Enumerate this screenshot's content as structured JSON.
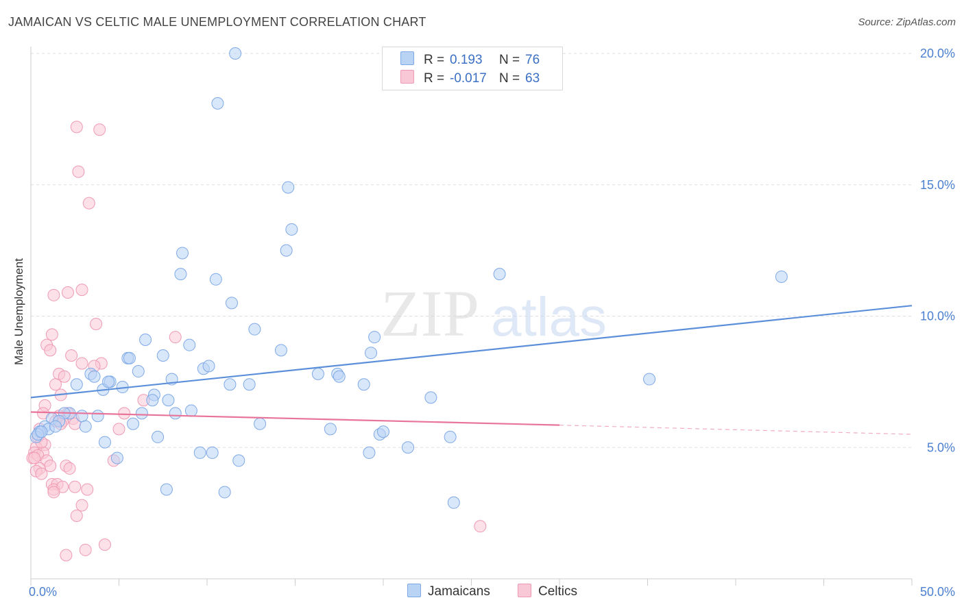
{
  "title": "JAMAICAN VS CELTIC MALE UNEMPLOYMENT CORRELATION CHART",
  "source": "Source: ZipAtlas.com",
  "watermark": {
    "zip": "ZIP",
    "atlas": "atlas"
  },
  "legend": {
    "rows": [
      {
        "r_label": "R =",
        "r_value": "0.193",
        "n_label": "N =",
        "n_value": "76",
        "fill": "#b9d3f5",
        "stroke": "#7ea9e6"
      },
      {
        "r_label": "R =",
        "r_value": "-0.017",
        "n_label": "N =",
        "n_value": "63",
        "fill": "#f9c8d6",
        "stroke": "#ef9ab4"
      }
    ]
  },
  "bottom_legend": [
    {
      "label": "Jamaicans",
      "fill": "#b9d3f5",
      "stroke": "#7ea9e6"
    },
    {
      "label": "Celtics",
      "fill": "#f9c8d6",
      "stroke": "#ef9ab4"
    }
  ],
  "chart_data": {
    "type": "scatter",
    "title": "JAMAICAN VS CELTIC MALE UNEMPLOYMENT CORRELATION CHART",
    "xlabel": "",
    "ylabel": "Male Unemployment",
    "xlim": [
      0,
      50
    ],
    "ylim": [
      0,
      20
    ],
    "x_tick_labels": [
      {
        "value": 0,
        "label": "0.0%"
      },
      {
        "value": 50,
        "label": "50.0%"
      }
    ],
    "y_tick_labels": [
      {
        "value": 5,
        "label": "5.0%"
      },
      {
        "value": 10,
        "label": "10.0%"
      },
      {
        "value": 15,
        "label": "15.0%"
      },
      {
        "value": 20,
        "label": "20.0%"
      }
    ],
    "grid": "horizontal dashed",
    "legend_placement": "top-center",
    "series": [
      {
        "name": "Jamaicans",
        "color": "#5b8fd9",
        "fill": "#b9d3f5",
        "points": [
          [
            11.6,
            20.0
          ],
          [
            10.6,
            18.1
          ],
          [
            14.6,
            14.9
          ],
          [
            14.8,
            13.3
          ],
          [
            14.5,
            12.5
          ],
          [
            8.6,
            12.4
          ],
          [
            8.5,
            11.6
          ],
          [
            10.5,
            11.4
          ],
          [
            26.6,
            11.6
          ],
          [
            42.6,
            11.5
          ],
          [
            11.4,
            10.5
          ],
          [
            12.7,
            9.5
          ],
          [
            14.2,
            8.7
          ],
          [
            19.5,
            9.2
          ],
          [
            19.3,
            8.6
          ],
          [
            6.5,
            9.1
          ],
          [
            9.0,
            8.9
          ],
          [
            7.5,
            8.5
          ],
          [
            5.5,
            8.4
          ],
          [
            5.6,
            8.4
          ],
          [
            9.8,
            8.0
          ],
          [
            10.1,
            8.1
          ],
          [
            6.1,
            7.9
          ],
          [
            16.3,
            7.8
          ],
          [
            17.4,
            7.8
          ],
          [
            17.5,
            7.7
          ],
          [
            3.4,
            7.8
          ],
          [
            3.6,
            7.7
          ],
          [
            8.0,
            7.6
          ],
          [
            4.5,
            7.5
          ],
          [
            4.1,
            7.2
          ],
          [
            2.6,
            7.4
          ],
          [
            5.2,
            7.3
          ],
          [
            4.4,
            7.5
          ],
          [
            11.3,
            7.4
          ],
          [
            12.4,
            7.4
          ],
          [
            18.9,
            7.4
          ],
          [
            35.1,
            7.6
          ],
          [
            7.0,
            7.0
          ],
          [
            6.9,
            6.8
          ],
          [
            7.8,
            6.8
          ],
          [
            22.7,
            6.9
          ],
          [
            2.2,
            6.3
          ],
          [
            1.9,
            6.3
          ],
          [
            2.9,
            6.2
          ],
          [
            3.8,
            6.2
          ],
          [
            6.3,
            6.3
          ],
          [
            8.2,
            6.3
          ],
          [
            9.1,
            6.4
          ],
          [
            1.2,
            6.1
          ],
          [
            1.6,
            6.0
          ],
          [
            0.8,
            5.8
          ],
          [
            1.0,
            5.7
          ],
          [
            1.4,
            5.8
          ],
          [
            3.1,
            5.8
          ],
          [
            5.8,
            5.9
          ],
          [
            13.0,
            5.9
          ],
          [
            17.0,
            5.7
          ],
          [
            0.5,
            5.6
          ],
          [
            0.3,
            5.4
          ],
          [
            0.4,
            5.5
          ],
          [
            7.2,
            5.4
          ],
          [
            19.8,
            5.5
          ],
          [
            20.0,
            5.6
          ],
          [
            23.8,
            5.4
          ],
          [
            4.2,
            5.2
          ],
          [
            21.4,
            5.0
          ],
          [
            9.6,
            4.8
          ],
          [
            10.3,
            4.8
          ],
          [
            19.2,
            4.8
          ],
          [
            4.9,
            4.6
          ],
          [
            11.8,
            4.5
          ],
          [
            7.7,
            3.4
          ],
          [
            11.0,
            3.3
          ],
          [
            24.0,
            2.9
          ],
          [
            0.6,
            5.6
          ]
        ],
        "trend": {
          "x0": 0,
          "y0": 6.9,
          "x1": 50,
          "y1": 10.4
        }
      },
      {
        "name": "Celtics",
        "color": "#e8749a",
        "fill": "#f9c8d6",
        "points": [
          [
            2.6,
            17.2
          ],
          [
            3.9,
            17.1
          ],
          [
            2.7,
            15.5
          ],
          [
            3.3,
            14.3
          ],
          [
            2.9,
            11.0
          ],
          [
            2.1,
            10.9
          ],
          [
            1.3,
            10.8
          ],
          [
            3.7,
            9.7
          ],
          [
            1.2,
            9.3
          ],
          [
            0.9,
            8.9
          ],
          [
            8.2,
            9.2
          ],
          [
            1.1,
            8.7
          ],
          [
            2.3,
            8.5
          ],
          [
            2.9,
            8.2
          ],
          [
            4.0,
            8.2
          ],
          [
            3.6,
            8.1
          ],
          [
            1.6,
            7.8
          ],
          [
            1.9,
            7.7
          ],
          [
            1.4,
            7.4
          ],
          [
            1.7,
            7.0
          ],
          [
            0.8,
            6.6
          ],
          [
            6.4,
            6.8
          ],
          [
            0.7,
            6.3
          ],
          [
            2.1,
            6.3
          ],
          [
            5.3,
            6.3
          ],
          [
            1.6,
            6.2
          ],
          [
            2.4,
            6.1
          ],
          [
            1.8,
            6.0
          ],
          [
            2.5,
            5.9
          ],
          [
            1.4,
            6.0
          ],
          [
            1.7,
            5.9
          ],
          [
            0.5,
            5.7
          ],
          [
            5.0,
            5.7
          ],
          [
            0.4,
            5.4
          ],
          [
            0.8,
            5.1
          ],
          [
            0.3,
            5.0
          ],
          [
            0.2,
            4.8
          ],
          [
            0.7,
            4.8
          ],
          [
            0.1,
            4.6
          ],
          [
            0.4,
            4.7
          ],
          [
            0.2,
            4.6
          ],
          [
            0.9,
            4.5
          ],
          [
            4.7,
            4.5
          ],
          [
            1.1,
            4.3
          ],
          [
            0.5,
            4.2
          ],
          [
            2.0,
            4.3
          ],
          [
            2.2,
            4.2
          ],
          [
            0.3,
            4.1
          ],
          [
            0.6,
            4.0
          ],
          [
            1.2,
            3.6
          ],
          [
            1.5,
            3.6
          ],
          [
            1.3,
            3.4
          ],
          [
            2.5,
            3.5
          ],
          [
            3.2,
            3.4
          ],
          [
            1.8,
            3.5
          ],
          [
            1.3,
            3.3
          ],
          [
            2.9,
            2.8
          ],
          [
            2.6,
            2.4
          ],
          [
            25.5,
            2.0
          ],
          [
            4.2,
            1.3
          ],
          [
            3.1,
            1.1
          ],
          [
            2.0,
            0.9
          ],
          [
            0.6,
            5.2
          ]
        ],
        "trend": {
          "x0": 0,
          "y0": 6.35,
          "x1": 30,
          "y1": 5.85
        },
        "trend_dashed_extension": {
          "x0": 30,
          "y0": 5.85,
          "x1": 50,
          "y1": 5.5
        }
      }
    ]
  }
}
